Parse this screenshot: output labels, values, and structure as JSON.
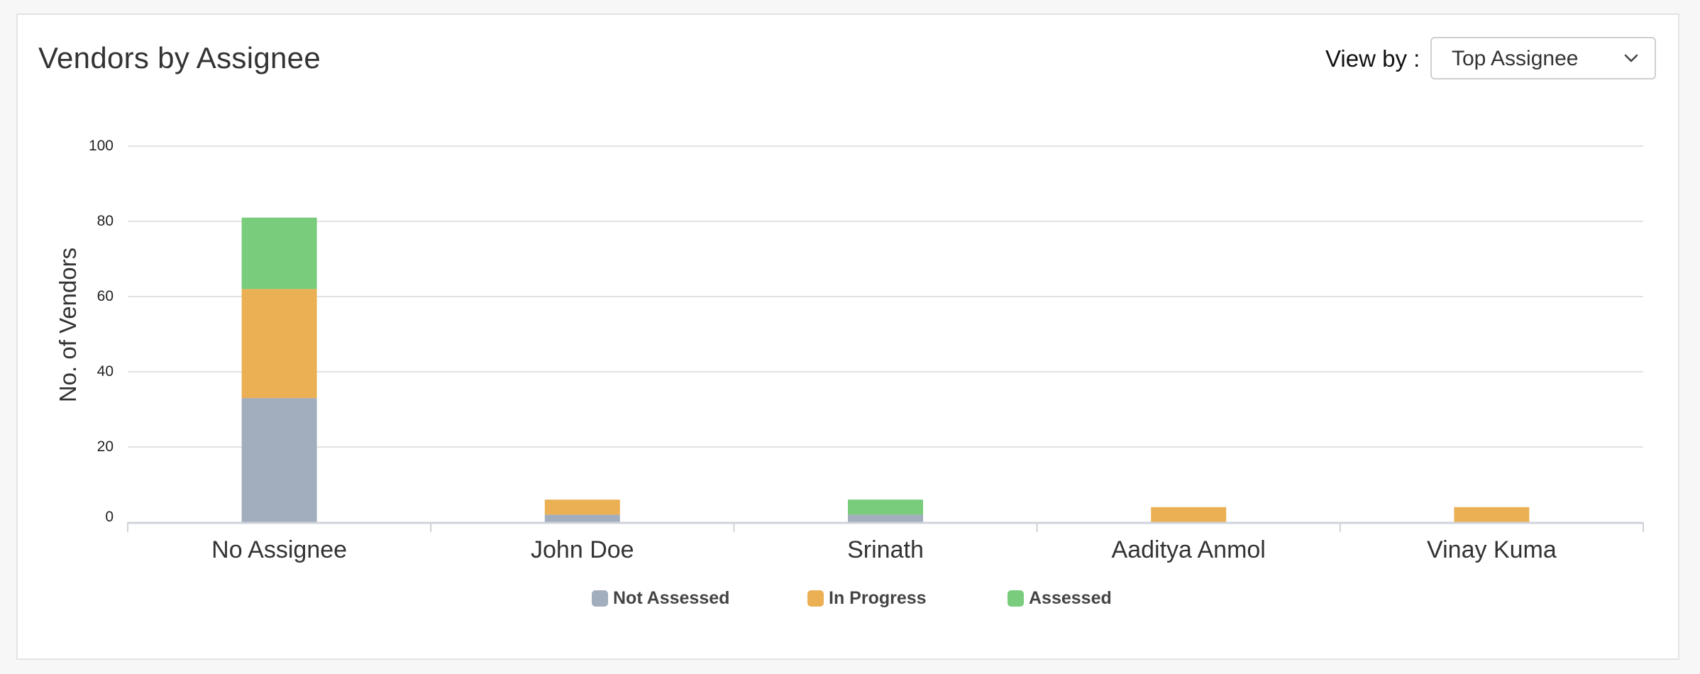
{
  "card": {
    "title": "Vendors by Assignee"
  },
  "view_by": {
    "label": "View by :",
    "selected": "Top Assignee"
  },
  "colors": {
    "not_assessed": "#a2adbd",
    "in_progress": "#ecb054",
    "assessed": "#78cc7c",
    "grid": "#e2e2e2",
    "axis": "#cfd3da"
  },
  "chart_data": {
    "type": "bar",
    "stacked": true,
    "title": "Vendors by Assignee",
    "ylabel": "No. of Vendors",
    "xlabel": "",
    "ylim": [
      0,
      100
    ],
    "yticks": [
      0,
      20,
      40,
      60,
      80,
      100
    ],
    "grid": true,
    "legend_position": "bottom",
    "categories": [
      "No Assignee",
      "John Doe",
      "Srinath",
      "Aaditya Anmol",
      "Vinay Kuma"
    ],
    "series": [
      {
        "name": "Not Assessed",
        "values": [
          33,
          2,
          2,
          0,
          0
        ]
      },
      {
        "name": "In Progress",
        "values": [
          29,
          4,
          0,
          4,
          4
        ]
      },
      {
        "name": "Assessed",
        "values": [
          19,
          0,
          4,
          0,
          0
        ]
      }
    ]
  }
}
